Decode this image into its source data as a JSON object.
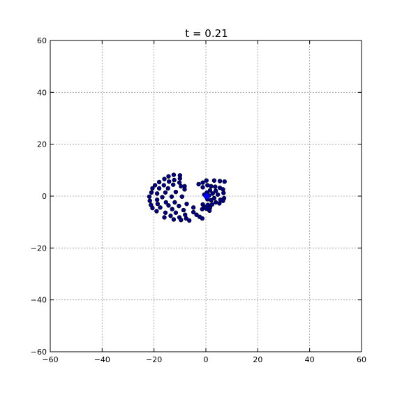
{
  "chart_data": {
    "type": "scatter",
    "title": "t = 0.21",
    "xlabel": "",
    "ylabel": "",
    "xlim": [
      -60,
      60
    ],
    "ylim": [
      -60,
      60
    ],
    "x_ticks": [
      -60,
      -40,
      -20,
      0,
      20,
      40,
      60
    ],
    "y_ticks": [
      -60,
      -40,
      -20,
      0,
      20,
      40,
      60
    ],
    "x_tick_labels": [
      "−60",
      "−40",
      "−20",
      "0",
      "20",
      "40",
      "60"
    ],
    "y_tick_labels": [
      "−60",
      "−40",
      "−20",
      "0",
      "20",
      "40",
      "60"
    ],
    "grid": true,
    "legend": "none",
    "marker_color": "#00008b",
    "marker_edge_color": "#000000",
    "highlight_color": "#0000ff",
    "highlight_points": [
      {
        "x": 0.3,
        "y": 0.0
      }
    ],
    "points": [
      {
        "x": -12.4,
        "y": 8.2
      },
      {
        "x": -10.0,
        "y": 8.0
      },
      {
        "x": -14.4,
        "y": 7.6
      },
      {
        "x": -10.0,
        "y": 6.8
      },
      {
        "x": -16.0,
        "y": 6.6
      },
      {
        "x": -12.2,
        "y": 6.2
      },
      {
        "x": -14.2,
        "y": 5.6
      },
      {
        "x": -18.0,
        "y": 5.4
      },
      {
        "x": -10.2,
        "y": 5.2
      },
      {
        "x": -12.6,
        "y": 4.4
      },
      {
        "x": -16.2,
        "y": 4.2
      },
      {
        "x": -19.6,
        "y": 4.2
      },
      {
        "x": -9.6,
        "y": 3.8
      },
      {
        "x": -8.2,
        "y": 3.8
      },
      {
        "x": -14.6,
        "y": 3.0
      },
      {
        "x": -18.0,
        "y": 3.0
      },
      {
        "x": -20.6,
        "y": 3.0
      },
      {
        "x": -8.2,
        "y": 2.6
      },
      {
        "x": -11.6,
        "y": 1.6
      },
      {
        "x": -15.6,
        "y": 1.4
      },
      {
        "x": -21.0,
        "y": 1.4
      },
      {
        "x": -18.8,
        "y": 1.0
      },
      {
        "x": -9.2,
        "y": -0.2
      },
      {
        "x": -13.2,
        "y": -0.2
      },
      {
        "x": -16.8,
        "y": -0.4
      },
      {
        "x": -21.8,
        "y": -0.2
      },
      {
        "x": -18.8,
        "y": -1.4
      },
      {
        "x": -21.6,
        "y": -1.8
      },
      {
        "x": -15.4,
        "y": -2.4
      },
      {
        "x": -12.0,
        "y": -2.4
      },
      {
        "x": -18.6,
        "y": -3.0
      },
      {
        "x": -7.4,
        "y": -3.0
      },
      {
        "x": -21.2,
        "y": -3.4
      },
      {
        "x": -14.4,
        "y": -3.6
      },
      {
        "x": -10.4,
        "y": -3.8
      },
      {
        "x": -17.6,
        "y": -4.4
      },
      {
        "x": -4.8,
        "y": -4.4
      },
      {
        "x": -20.6,
        "y": -4.6
      },
      {
        "x": -13.0,
        "y": -5.0
      },
      {
        "x": -8.6,
        "y": -5.4
      },
      {
        "x": -19.0,
        "y": -5.8
      },
      {
        "x": -15.6,
        "y": -6.4
      },
      {
        "x": -11.6,
        "y": -6.4
      },
      {
        "x": -4.8,
        "y": -6.2
      },
      {
        "x": -8.0,
        "y": -7.2
      },
      {
        "x": -13.6,
        "y": -7.6
      },
      {
        "x": -3.6,
        "y": -7.2
      },
      {
        "x": -10.2,
        "y": -8.2
      },
      {
        "x": -16.0,
        "y": -8.2
      },
      {
        "x": -2.4,
        "y": -8.0
      },
      {
        "x": -7.6,
        "y": -8.6
      },
      {
        "x": -12.4,
        "y": -9.0
      },
      {
        "x": -1.4,
        "y": -8.6
      },
      {
        "x": -9.6,
        "y": -9.2
      },
      {
        "x": -6.4,
        "y": -9.4
      },
      {
        "x": 0.2,
        "y": 6.0
      },
      {
        "x": 3.2,
        "y": 6.0
      },
      {
        "x": 5.4,
        "y": 5.8
      },
      {
        "x": 7.2,
        "y": 5.6
      },
      {
        "x": -1.2,
        "y": 5.2
      },
      {
        "x": -2.8,
        "y": 4.6
      },
      {
        "x": 0.6,
        "y": 4.2
      },
      {
        "x": 2.0,
        "y": 3.8
      },
      {
        "x": 3.6,
        "y": 3.6
      },
      {
        "x": -1.2,
        "y": 3.4
      },
      {
        "x": 5.4,
        "y": 3.2
      },
      {
        "x": 6.6,
        "y": 2.6
      },
      {
        "x": 1.6,
        "y": 2.2
      },
      {
        "x": 3.8,
        "y": 2.0
      },
      {
        "x": 0.4,
        "y": 1.4
      },
      {
        "x": 6.8,
        "y": 1.2
      },
      {
        "x": 2.6,
        "y": 1.0
      },
      {
        "x": 4.6,
        "y": 0.6
      },
      {
        "x": -0.6,
        "y": 0.6
      },
      {
        "x": 1.2,
        "y": 0.2
      },
      {
        "x": 7.0,
        "y": -0.8
      },
      {
        "x": 3.2,
        "y": -0.8
      },
      {
        "x": 0.6,
        "y": -1.2
      },
      {
        "x": 5.6,
        "y": -1.4
      },
      {
        "x": 2.0,
        "y": -1.6
      },
      {
        "x": 6.6,
        "y": -1.8
      },
      {
        "x": 3.8,
        "y": -2.4
      },
      {
        "x": 5.2,
        "y": -2.8
      },
      {
        "x": -1.2,
        "y": -3.2
      },
      {
        "x": 0.8,
        "y": -3.4
      },
      {
        "x": 2.4,
        "y": -3.2
      },
      {
        "x": -0.6,
        "y": -4.0
      },
      {
        "x": 1.6,
        "y": -4.4
      },
      {
        "x": -1.4,
        "y": -5.0
      },
      {
        "x": 0.2,
        "y": -4.8
      },
      {
        "x": 1.4,
        "y": -5.6
      }
    ]
  }
}
